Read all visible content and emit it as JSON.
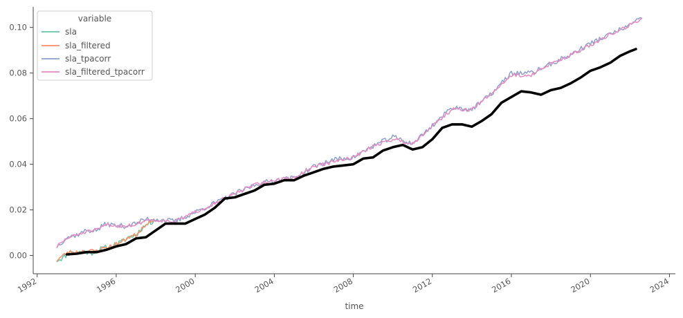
{
  "chart_data": {
    "type": "line",
    "xlabel": "time",
    "ylabel": "",
    "xlim": [
      1991.8,
      2024.3
    ],
    "ylim": [
      -0.008,
      0.109
    ],
    "x_ticks": [
      1992,
      1996,
      2000,
      2004,
      2008,
      2012,
      2016,
      2020,
      2024
    ],
    "x_tick_labels": [
      "1992",
      "1996",
      "2000",
      "2004",
      "2008",
      "2012",
      "2016",
      "2020",
      "2024"
    ],
    "y_ticks": [
      0.0,
      0.02,
      0.04,
      0.06,
      0.08,
      0.1
    ],
    "y_tick_labels": [
      "0.00",
      "0.02",
      "0.04",
      "0.06",
      "0.08",
      "0.10"
    ],
    "grid": false,
    "legend": {
      "title": "variable",
      "position": "top-left"
    },
    "series": [
      {
        "name": "sla",
        "color": "#66c2a5",
        "points": [
          [
            1993.0,
            -0.002
          ],
          [
            1993.3,
            -0.001
          ],
          [
            1993.6,
            0.001
          ],
          [
            1994.0,
            0.001
          ],
          [
            1994.3,
            0.002
          ],
          [
            1994.7,
            0.001
          ],
          [
            1995.0,
            0.002
          ],
          [
            1995.3,
            0.003
          ],
          [
            1995.7,
            0.004
          ],
          [
            1996.0,
            0.005
          ],
          [
            1996.3,
            0.006
          ],
          [
            1996.6,
            0.008
          ],
          [
            1997.0,
            0.009
          ],
          [
            1997.3,
            0.012
          ],
          [
            1997.6,
            0.014
          ],
          [
            1997.9,
            0.015
          ]
        ]
      },
      {
        "name": "sla_filtered",
        "color": "#fc8d62",
        "points": [
          [
            1993.0,
            -0.002
          ],
          [
            1993.3,
            0.0
          ],
          [
            1993.6,
            0.0015
          ],
          [
            1994.0,
            0.0015
          ],
          [
            1994.3,
            0.002
          ],
          [
            1994.7,
            0.002
          ],
          [
            1995.0,
            0.002
          ],
          [
            1995.3,
            0.003
          ],
          [
            1995.7,
            0.004
          ],
          [
            1996.0,
            0.005
          ],
          [
            1996.3,
            0.006
          ],
          [
            1996.6,
            0.008
          ],
          [
            1997.0,
            0.009
          ],
          [
            1997.3,
            0.012
          ],
          [
            1997.6,
            0.0145
          ],
          [
            1997.9,
            0.016
          ]
        ]
      },
      {
        "name": "sla_tpacorr",
        "color": "#8da0cb",
        "points": [
          [
            1993.0,
            0.004
          ],
          [
            1993.5,
            0.008
          ],
          [
            1994.0,
            0.009
          ],
          [
            1994.5,
            0.011
          ],
          [
            1995.0,
            0.011
          ],
          [
            1995.5,
            0.014
          ],
          [
            1996.0,
            0.013
          ],
          [
            1996.5,
            0.013
          ],
          [
            1997.0,
            0.014
          ],
          [
            1997.5,
            0.016
          ],
          [
            1998.0,
            0.016
          ],
          [
            1999.0,
            0.015
          ],
          [
            2000.0,
            0.019
          ],
          [
            2001.0,
            0.023
          ],
          [
            2002.0,
            0.027
          ],
          [
            2003.0,
            0.031
          ],
          [
            2004.0,
            0.033
          ],
          [
            2005.0,
            0.034
          ],
          [
            2006.0,
            0.039
          ],
          [
            2007.0,
            0.042
          ],
          [
            2008.0,
            0.043
          ],
          [
            2009.0,
            0.048
          ],
          [
            2010.0,
            0.052
          ],
          [
            2011.0,
            0.049
          ],
          [
            2012.0,
            0.057
          ],
          [
            2013.0,
            0.065
          ],
          [
            2014.0,
            0.064
          ],
          [
            2015.0,
            0.071
          ],
          [
            2016.0,
            0.08
          ],
          [
            2017.0,
            0.08
          ],
          [
            2018.0,
            0.084
          ],
          [
            2019.0,
            0.088
          ],
          [
            2020.0,
            0.093
          ],
          [
            2021.0,
            0.097
          ],
          [
            2022.0,
            0.101
          ],
          [
            2022.6,
            0.104
          ]
        ]
      },
      {
        "name": "sla_filtered_tpacorr",
        "color": "#e78ac3",
        "points": [
          [
            1993.0,
            0.004
          ],
          [
            1993.5,
            0.0075
          ],
          [
            1994.0,
            0.009
          ],
          [
            1994.5,
            0.0105
          ],
          [
            1995.0,
            0.011
          ],
          [
            1995.5,
            0.0135
          ],
          [
            1996.0,
            0.013
          ],
          [
            1996.5,
            0.013
          ],
          [
            1997.0,
            0.0135
          ],
          [
            1997.5,
            0.0155
          ],
          [
            1998.0,
            0.0155
          ],
          [
            1999.0,
            0.015
          ],
          [
            2000.0,
            0.019
          ],
          [
            2001.0,
            0.023
          ],
          [
            2002.0,
            0.027
          ],
          [
            2003.0,
            0.031
          ],
          [
            2004.0,
            0.033
          ],
          [
            2005.0,
            0.034
          ],
          [
            2006.0,
            0.039
          ],
          [
            2007.0,
            0.041
          ],
          [
            2008.0,
            0.043
          ],
          [
            2009.0,
            0.048
          ],
          [
            2010.0,
            0.051
          ],
          [
            2011.0,
            0.049
          ],
          [
            2012.0,
            0.057
          ],
          [
            2013.0,
            0.064
          ],
          [
            2014.0,
            0.064
          ],
          [
            2015.0,
            0.071
          ],
          [
            2016.0,
            0.079
          ],
          [
            2017.0,
            0.079
          ],
          [
            2018.0,
            0.084
          ],
          [
            2019.0,
            0.088
          ],
          [
            2020.0,
            0.092
          ],
          [
            2021.0,
            0.097
          ],
          [
            2022.0,
            0.101
          ],
          [
            2022.6,
            0.104
          ]
        ]
      },
      {
        "color": "#000000",
        "points": [
          [
            1993.5,
            0.0005
          ],
          [
            1994.0,
            0.0008
          ],
          [
            1994.5,
            0.0015
          ],
          [
            1995.0,
            0.0015
          ],
          [
            1995.5,
            0.0025
          ],
          [
            1996.0,
            0.004
          ],
          [
            1996.5,
            0.005
          ],
          [
            1997.0,
            0.0075
          ],
          [
            1997.5,
            0.008
          ],
          [
            1998.0,
            0.011
          ],
          [
            1998.5,
            0.014
          ],
          [
            1999.0,
            0.014
          ],
          [
            1999.5,
            0.014
          ],
          [
            2000.0,
            0.016
          ],
          [
            2000.5,
            0.018
          ],
          [
            2001.0,
            0.021
          ],
          [
            2001.5,
            0.025
          ],
          [
            2002.0,
            0.0255
          ],
          [
            2002.5,
            0.027
          ],
          [
            2003.0,
            0.0285
          ],
          [
            2003.5,
            0.031
          ],
          [
            2004.0,
            0.0315
          ],
          [
            2004.5,
            0.033
          ],
          [
            2005.0,
            0.033
          ],
          [
            2005.5,
            0.035
          ],
          [
            2006.0,
            0.0365
          ],
          [
            2006.5,
            0.038
          ],
          [
            2007.0,
            0.039
          ],
          [
            2007.5,
            0.0395
          ],
          [
            2008.0,
            0.04
          ],
          [
            2008.5,
            0.0425
          ],
          [
            2009.0,
            0.043
          ],
          [
            2009.5,
            0.046
          ],
          [
            2010.0,
            0.0475
          ],
          [
            2010.5,
            0.0485
          ],
          [
            2011.0,
            0.0465
          ],
          [
            2011.5,
            0.0475
          ],
          [
            2012.0,
            0.051
          ],
          [
            2012.5,
            0.056
          ],
          [
            2013.0,
            0.0575
          ],
          [
            2013.5,
            0.0575
          ],
          [
            2014.0,
            0.0565
          ],
          [
            2014.5,
            0.059
          ],
          [
            2015.0,
            0.062
          ],
          [
            2015.5,
            0.067
          ],
          [
            2016.0,
            0.0695
          ],
          [
            2016.5,
            0.072
          ],
          [
            2017.0,
            0.0715
          ],
          [
            2017.5,
            0.0705
          ],
          [
            2018.0,
            0.0725
          ],
          [
            2018.5,
            0.0735
          ],
          [
            2019.0,
            0.0755
          ],
          [
            2019.5,
            0.078
          ],
          [
            2020.0,
            0.081
          ],
          [
            2020.5,
            0.0825
          ],
          [
            2021.0,
            0.0845
          ],
          [
            2021.5,
            0.0875
          ],
          [
            2022.0,
            0.0895
          ],
          [
            2022.3,
            0.0905
          ]
        ]
      }
    ]
  }
}
